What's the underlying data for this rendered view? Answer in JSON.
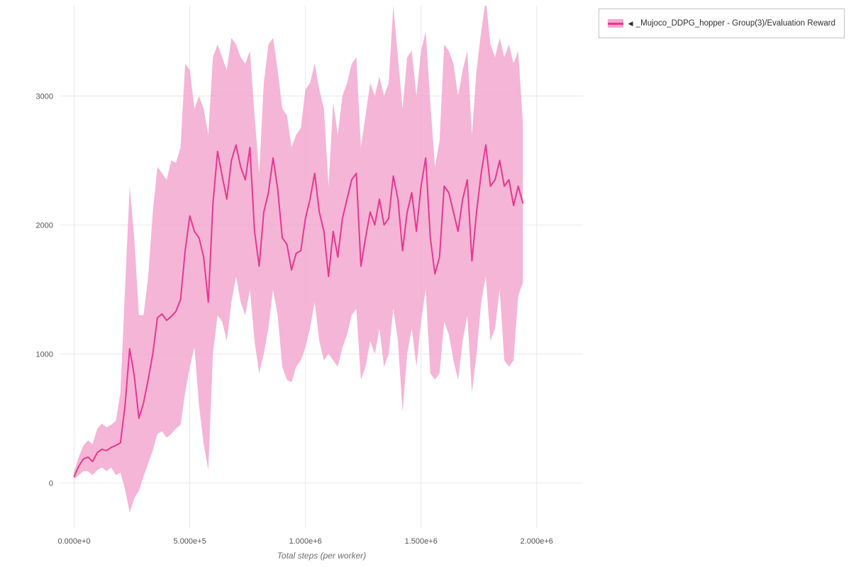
{
  "page": {
    "background": "#ffffff"
  },
  "legend": {
    "collapse_glyph": "◀",
    "items": [
      {
        "label": "_Mujoco_DDPG_hopper - Group(3)/Evaluation Reward",
        "line_color": "#e8378f",
        "band_color": "#f3a8d0"
      }
    ]
  },
  "chart_data": {
    "type": "line",
    "title": "",
    "xlabel": "Total steps (per worker)",
    "ylabel": "",
    "xlim": [
      -60000,
      2200000
    ],
    "ylim": [
      -350,
      3700
    ],
    "grid": true,
    "grid_color": "#e8e8e8",
    "tick_color": "#545454",
    "legend_position": "top-right",
    "x_ticks": [
      {
        "value": 0,
        "label": "0.000e+0"
      },
      {
        "value": 500000,
        "label": "5.000e+5"
      },
      {
        "value": 1000000,
        "label": "1.000e+6"
      },
      {
        "value": 1500000,
        "label": "1.500e+6"
      },
      {
        "value": 2000000,
        "label": "2.000e+6"
      }
    ],
    "y_ticks": [
      {
        "value": 0,
        "label": "0"
      },
      {
        "value": 1000,
        "label": "1000"
      },
      {
        "value": 2000,
        "label": "2000"
      },
      {
        "value": 3000,
        "label": "3000"
      }
    ],
    "series": [
      {
        "name": "_Mujoco_DDPG_hopper - Group(3)/Evaluation Reward",
        "line_color": "#e8378f",
        "band_color": "#f3a8d0",
        "band_opacity": 0.85,
        "x_start": 0,
        "x_step": 20000,
        "mean": [
          50,
          130,
          185,
          200,
          165,
          235,
          260,
          250,
          275,
          290,
          310,
          600,
          1040,
          830,
          500,
          620,
          800,
          1000,
          1280,
          1310,
          1260,
          1290,
          1330,
          1420,
          1800,
          2070,
          1950,
          1900,
          1750,
          1400,
          2160,
          2570,
          2380,
          2200,
          2500,
          2620,
          2450,
          2350,
          2600,
          1950,
          1680,
          2100,
          2250,
          2520,
          2280,
          1900,
          1850,
          1650,
          1780,
          1800,
          2050,
          2200,
          2400,
          2100,
          1950,
          1600,
          1950,
          1750,
          2050,
          2200,
          2350,
          2400,
          1680,
          1900,
          2100,
          2000,
          2200,
          2000,
          2050,
          2380,
          2200,
          1800,
          2100,
          2250,
          1950,
          2300,
          2520,
          1900,
          1620,
          1750,
          2300,
          2250,
          2100,
          1950,
          2200,
          2350,
          1720,
          2100,
          2400,
          2620,
          2300,
          2350,
          2500,
          2300,
          2350,
          2150,
          2300,
          2170
        ],
        "lower": [
          30,
          60,
          90,
          90,
          60,
          100,
          120,
          90,
          120,
          60,
          80,
          -50,
          -230,
          -120,
          -60,
          50,
          150,
          250,
          380,
          400,
          350,
          380,
          420,
          450,
          700,
          900,
          1050,
          600,
          300,
          100,
          1000,
          1300,
          1250,
          1100,
          1400,
          1600,
          1400,
          1300,
          1500,
          1100,
          850,
          1000,
          1200,
          1500,
          1300,
          900,
          800,
          780,
          900,
          950,
          1050,
          1200,
          1400,
          1100,
          950,
          1000,
          950,
          900,
          1050,
          1150,
          1300,
          1350,
          800,
          900,
          1100,
          1000,
          1200,
          900,
          1000,
          1350,
          1100,
          550,
          1000,
          1200,
          900,
          1250,
          1500,
          850,
          800,
          850,
          1250,
          1150,
          950,
          800,
          1100,
          1300,
          700,
          1000,
          1400,
          1600,
          1100,
          1200,
          1500,
          950,
          900,
          950,
          1450,
          1550
        ],
        "upper": [
          90,
          200,
          290,
          330,
          300,
          420,
          460,
          430,
          450,
          480,
          700,
          1500,
          2300,
          1900,
          1300,
          1300,
          1600,
          2100,
          2450,
          2400,
          2350,
          2500,
          2480,
          2600,
          3250,
          3200,
          2900,
          3000,
          2900,
          2700,
          3300,
          3400,
          3300,
          3200,
          3450,
          3400,
          3300,
          3250,
          3350,
          2850,
          2400,
          3100,
          3400,
          3450,
          3200,
          2900,
          2850,
          2600,
          2700,
          2750,
          3050,
          3100,
          3250,
          3050,
          2900,
          2300,
          2950,
          2700,
          3000,
          3100,
          3250,
          3300,
          2600,
          2850,
          3100,
          3000,
          3150,
          3000,
          3100,
          3700,
          3300,
          2900,
          3300,
          3350,
          3000,
          3350,
          3500,
          2950,
          2450,
          2650,
          3400,
          3350,
          3250,
          3000,
          3200,
          3350,
          2700,
          3200,
          3500,
          3750,
          3400,
          3300,
          3450,
          3300,
          3400,
          3250,
          3350,
          2800
        ]
      }
    ]
  }
}
